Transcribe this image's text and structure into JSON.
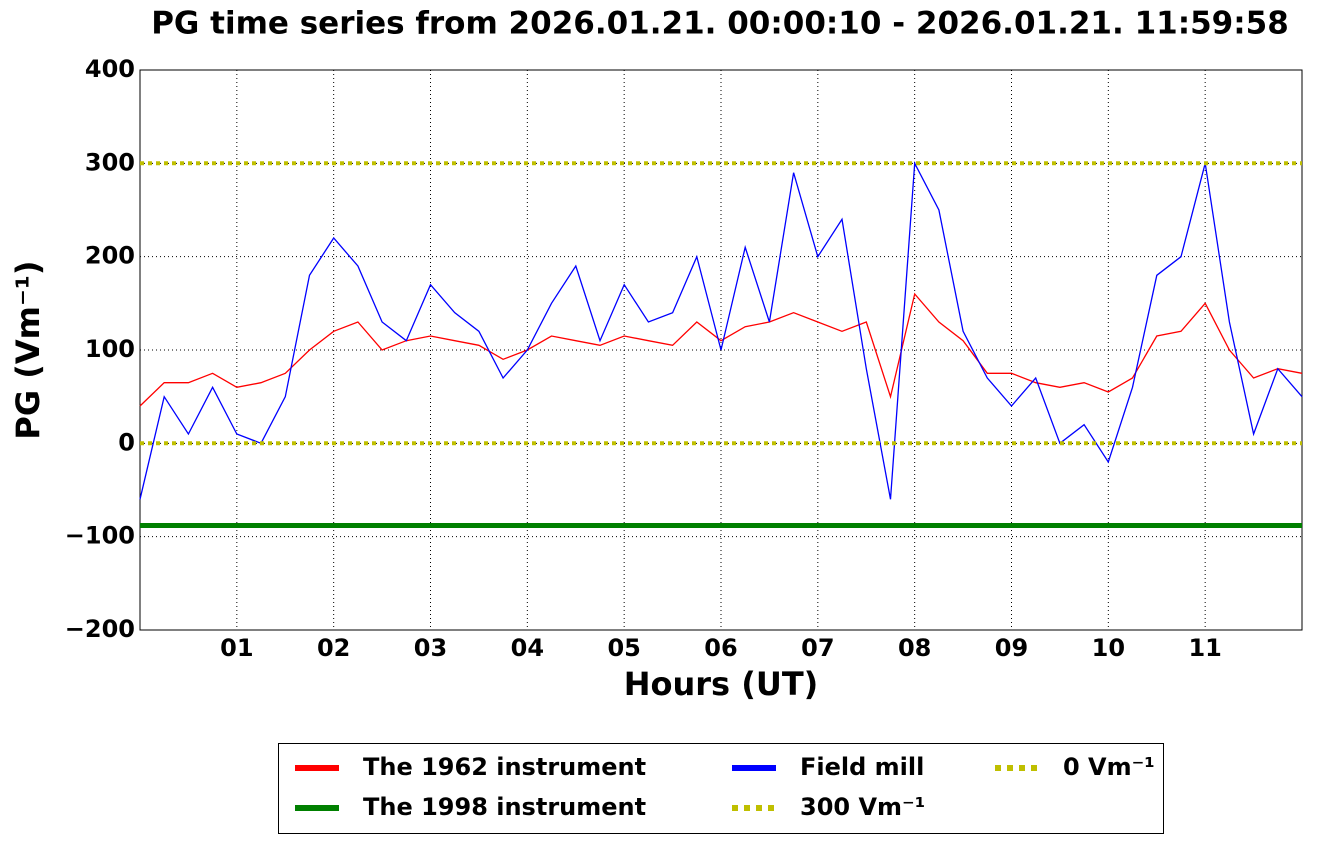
{
  "chart_data": {
    "type": "line",
    "title": "PG time series from 2026.01.21. 00:00:10 - 2026.01.21. 11:59:58",
    "x_label": "Hours (UT)",
    "y_label": "PG (Vm⁻¹)",
    "x": [
      0,
      0.25,
      0.5,
      0.75,
      1,
      1.25,
      1.5,
      1.75,
      2,
      2.25,
      2.5,
      2.75,
      3,
      3.25,
      3.5,
      3.75,
      4,
      4.25,
      4.5,
      4.75,
      5,
      5.25,
      5.5,
      5.75,
      6,
      6.25,
      6.5,
      6.75,
      7,
      7.25,
      7.5,
      7.75,
      8,
      8.25,
      8.5,
      8.75,
      9,
      9.25,
      9.5,
      9.75,
      10,
      10.25,
      10.5,
      10.75,
      11,
      11.25,
      11.5,
      11.75,
      12
    ],
    "xlim": [
      0,
      12
    ],
    "xticks": [
      {
        "value": 1,
        "label": "01"
      },
      {
        "value": 2,
        "label": "02"
      },
      {
        "value": 3,
        "label": "03"
      },
      {
        "value": 4,
        "label": "04"
      },
      {
        "value": 5,
        "label": "05"
      },
      {
        "value": 6,
        "label": "06"
      },
      {
        "value": 7,
        "label": "07"
      },
      {
        "value": 8,
        "label": "08"
      },
      {
        "value": 9,
        "label": "09"
      },
      {
        "value": 10,
        "label": "10"
      },
      {
        "value": 11,
        "label": "11"
      }
    ],
    "ylim": [
      -200,
      400
    ],
    "yticks": [
      {
        "value": -200,
        "label": "−200"
      },
      {
        "value": -100,
        "label": "−100"
      },
      0,
      100,
      200,
      300,
      400
    ],
    "grid": true,
    "legend": "bottom",
    "series": [
      {
        "name": "The 1962 instrument",
        "color": "#ff0000",
        "values": [
          40,
          65,
          65,
          75,
          60,
          65,
          75,
          100,
          120,
          130,
          100,
          110,
          115,
          110,
          105,
          90,
          100,
          115,
          110,
          105,
          115,
          110,
          105,
          130,
          110,
          125,
          130,
          140,
          130,
          120,
          130,
          50,
          160,
          130,
          110,
          75,
          75,
          65,
          60,
          65,
          55,
          70,
          115,
          120,
          150,
          100,
          70,
          80,
          75
        ]
      },
      {
        "name": "The 1998 instrument",
        "color": "#008000",
        "x": [
          0,
          12
        ],
        "values": [
          -88,
          -88
        ]
      },
      {
        "name": "Field mill",
        "color": "#0000ff",
        "values": [
          -60,
          50,
          10,
          60,
          10,
          0,
          50,
          180,
          220,
          190,
          130,
          110,
          170,
          140,
          120,
          70,
          100,
          150,
          190,
          110,
          170,
          130,
          140,
          200,
          100,
          210,
          130,
          290,
          200,
          240,
          80,
          -60,
          300,
          250,
          120,
          70,
          40,
          70,
          0,
          20,
          -20,
          60,
          180,
          200,
          300,
          130,
          10,
          80,
          50
        ]
      },
      {
        "name": "300 Vm⁻¹",
        "color": "#bfbf00",
        "dashed": true,
        "x": [
          0,
          12
        ],
        "values": [
          300,
          300
        ]
      },
      {
        "name": "0 Vm⁻¹",
        "color": "#bfbf00",
        "dashed": true,
        "x": [
          0,
          12
        ],
        "values": [
          0,
          0
        ]
      }
    ]
  }
}
